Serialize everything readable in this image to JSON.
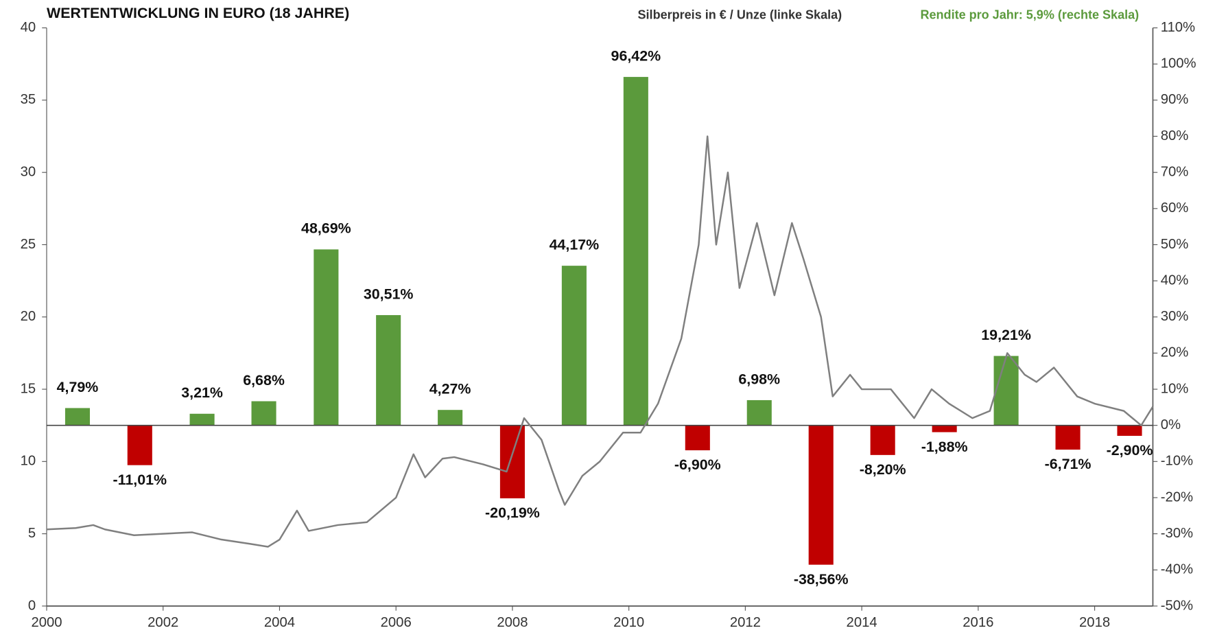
{
  "chart_data": {
    "type": "bar",
    "title": "WERTENTWICKLUNG IN EURO (18  JAHRE)",
    "xlim": [
      2000,
      2019
    ],
    "xticks": [
      2000,
      2002,
      2004,
      2006,
      2008,
      2010,
      2012,
      2014,
      2016,
      2018
    ],
    "ylim": [
      0,
      40
    ],
    "yticks": [
      0,
      5,
      10,
      15,
      20,
      25,
      30,
      35,
      40
    ],
    "y2lim": [
      -50,
      110
    ],
    "y2ticks": [
      {
        "value": -50,
        "label": "-50%"
      },
      {
        "value": -40,
        "label": "-40%"
      },
      {
        "value": -30,
        "label": "-30%"
      },
      {
        "value": -20,
        "label": "-20%"
      },
      {
        "value": -10,
        "label": "-10%"
      },
      {
        "value": 0,
        "label": "0%"
      },
      {
        "value": 10,
        "label": "10%"
      },
      {
        "value": 20,
        "label": "20%"
      },
      {
        "value": 30,
        "label": "30%"
      },
      {
        "value": 40,
        "label": "40%"
      },
      {
        "value": 50,
        "label": "50%"
      },
      {
        "value": 60,
        "label": "60%"
      },
      {
        "value": 70,
        "label": "70%"
      },
      {
        "value": 80,
        "label": "80%"
      },
      {
        "value": 90,
        "label": "90%"
      },
      {
        "value": 100,
        "label": "100%"
      },
      {
        "value": 110,
        "label": "110%"
      }
    ],
    "series": [
      {
        "name": "Silberpreis in € / Unze (linke Skala)",
        "type": "line",
        "color": "#7f7f7f",
        "x": [
          2000.0,
          2000.5,
          2000.8,
          2001.0,
          2001.5,
          2002.0,
          2002.5,
          2003.0,
          2003.5,
          2003.8,
          2004.0,
          2004.3,
          2004.5,
          2005.0,
          2005.5,
          2006.0,
          2006.3,
          2006.5,
          2006.8,
          2007.0,
          2007.5,
          2007.9,
          2008.2,
          2008.5,
          2008.8,
          2008.9,
          2009.2,
          2009.5,
          2009.9,
          2010.2,
          2010.5,
          2010.9,
          2011.2,
          2011.35,
          2011.5,
          2011.7,
          2011.9,
          2012.2,
          2012.5,
          2012.8,
          2013.0,
          2013.3,
          2013.5,
          2013.8,
          2014.0,
          2014.5,
          2014.9,
          2015.2,
          2015.5,
          2015.9,
          2016.2,
          2016.5,
          2016.8,
          2017.0,
          2017.3,
          2017.7,
          2018.0,
          2018.5,
          2018.8,
          2019.0
        ],
        "values": [
          5.3,
          5.4,
          5.6,
          5.3,
          4.9,
          5.0,
          5.1,
          4.6,
          4.3,
          4.1,
          4.6,
          6.6,
          5.2,
          5.6,
          5.8,
          7.5,
          10.5,
          8.9,
          10.2,
          10.3,
          9.8,
          9.3,
          13.0,
          11.5,
          8.0,
          7.0,
          9.0,
          10.0,
          12.0,
          12.0,
          14.0,
          18.5,
          25.0,
          32.5,
          25.0,
          30.0,
          22.0,
          26.5,
          21.5,
          26.5,
          24.0,
          20.0,
          14.5,
          16.0,
          15.0,
          15.0,
          13.0,
          15.0,
          14.0,
          13.0,
          13.5,
          17.5,
          16.0,
          15.5,
          16.5,
          14.5,
          14.0,
          13.5,
          12.5,
          13.8
        ]
      },
      {
        "name": "Rendite pro Jahr: 5,9%  (rechte Skala)",
        "type": "bar",
        "axis": "y2",
        "color": "#5b9a3c",
        "negative_color": "#c00000",
        "x": [
          2000.53,
          2001.6,
          2002.67,
          2003.73,
          2004.8,
          2005.87,
          2006.93,
          2008.0,
          2009.06,
          2010.12,
          2011.18,
          2012.24,
          2013.3,
          2014.36,
          2015.42,
          2016.48,
          2017.54,
          2018.6
        ],
        "values": [
          4.79,
          -11.01,
          3.21,
          6.68,
          48.69,
          30.51,
          4.27,
          -20.19,
          44.17,
          96.42,
          -6.9,
          6.98,
          -38.56,
          -8.2,
          -1.88,
          19.21,
          -6.71,
          -2.9
        ],
        "value_labels": [
          "4,79%",
          "-11,01%",
          "3,21%",
          "6,68%",
          "48,69%",
          "30,51%",
          "4,27%",
          "-20,19%",
          "44,17%",
          "96,42%",
          "-6,90%",
          "6,98%",
          "-38,56%",
          "-8,20%",
          "-1,88%",
          "19,21%",
          "-6,71%",
          "-2,90%"
        ]
      }
    ]
  }
}
